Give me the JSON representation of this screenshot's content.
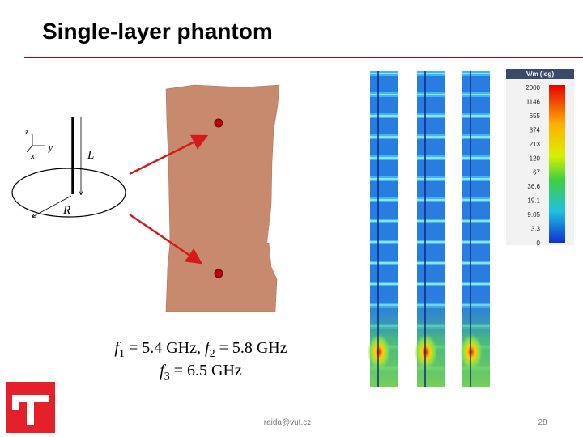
{
  "header": {
    "title": "Single-layer phantom"
  },
  "antenna": {
    "axis_z": "z",
    "axis_y": "y",
    "axis_x": "x",
    "length": "L",
    "radius": "R"
  },
  "caption": {
    "line1": [
      "f",
      "1",
      " = 5.4 GHz, ",
      "f",
      "2",
      " = 5.8 GHz"
    ],
    "line2": [
      "f",
      "3",
      " = 6.5 GHz"
    ]
  },
  "colorbar": {
    "unit": "V/m (log)",
    "labels": [
      "2000",
      "1146",
      "655",
      "374",
      "213",
      "120",
      "67",
      "36.6",
      "19.1",
      "9.05",
      "3.3",
      "0"
    ]
  },
  "footer": {
    "email": "raida@vut.cz",
    "page": "28"
  }
}
